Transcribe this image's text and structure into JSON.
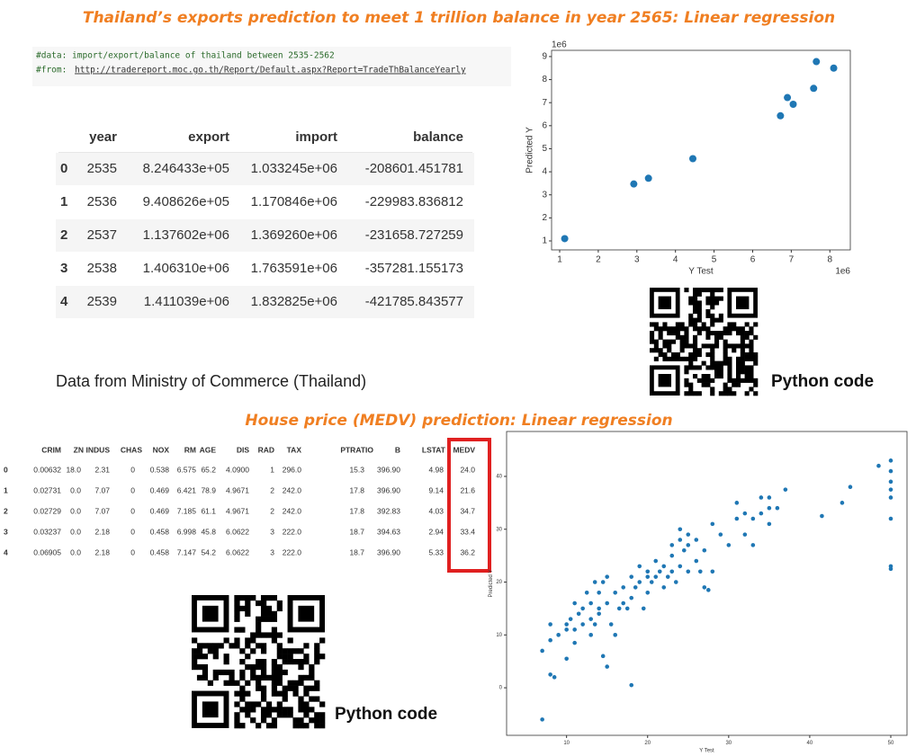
{
  "title1": "Thailand’s exports prediction to meet 1 trillion balance in year 2565:  Linear regression",
  "code": {
    "line1": "#data: import/export/balance of thailand between 2535-2562",
    "from": "#from:",
    "link": "http://tradereport.moc.go.th/Report/Default.aspx?Report=TradeThBalanceYearly"
  },
  "table1": {
    "columns": [
      "year",
      "export",
      "import",
      "balance"
    ],
    "rows": [
      [
        "0",
        "2535",
        "8.246433e+05",
        "1.033245e+06",
        "-208601.451781"
      ],
      [
        "1",
        "2536",
        "9.408626e+05",
        "1.170846e+06",
        "-229983.836812"
      ],
      [
        "2",
        "2537",
        "1.137602e+06",
        "1.369260e+06",
        "-231658.727259"
      ],
      [
        "3",
        "2538",
        "1.406310e+06",
        "1.763591e+06",
        "-357281.155173"
      ],
      [
        "4",
        "2539",
        "1.411039e+06",
        "1.832825e+06",
        "-421785.843577"
      ]
    ]
  },
  "caption": "Data from Ministry of Commerce (Thailand)",
  "qr_label1": "Python code",
  "title2": "House price (MEDV) prediction: Linear regression",
  "table2": {
    "columns": [
      "CRIM",
      "ZN",
      "INDUS",
      "CHAS",
      "NOX",
      "RM",
      "AGE",
      "DIS",
      "RAD",
      "TAX",
      "PTRATIO",
      "B",
      "LSTAT",
      "MEDV"
    ],
    "rows": [
      [
        "0",
        "0.00632",
        "18.0",
        "2.31",
        "0",
        "0.538",
        "6.575",
        "65.2",
        "4.0900",
        "1",
        "296.0",
        "15.3",
        "396.90",
        "4.98",
        "24.0"
      ],
      [
        "1",
        "0.02731",
        "0.0",
        "7.07",
        "0",
        "0.469",
        "6.421",
        "78.9",
        "4.9671",
        "2",
        "242.0",
        "17.8",
        "396.90",
        "9.14",
        "21.6"
      ],
      [
        "2",
        "0.02729",
        "0.0",
        "7.07",
        "0",
        "0.469",
        "7.185",
        "61.1",
        "4.9671",
        "2",
        "242.0",
        "17.8",
        "392.83",
        "4.03",
        "34.7"
      ],
      [
        "3",
        "0.03237",
        "0.0",
        "2.18",
        "0",
        "0.458",
        "6.998",
        "45.8",
        "6.0622",
        "3",
        "222.0",
        "18.7",
        "394.63",
        "2.94",
        "33.4"
      ],
      [
        "4",
        "0.06905",
        "0.0",
        "2.18",
        "0",
        "0.458",
        "7.147",
        "54.2",
        "6.0622",
        "3",
        "222.0",
        "18.7",
        "396.90",
        "5.33",
        "36.2"
      ]
    ]
  },
  "qr_label2": "Python code",
  "chart_data": [
    {
      "type": "scatter",
      "xlabel": "Y Test",
      "ylabel": "Predicted Y",
      "xoffset": "1e6",
      "yoffset": "1e6",
      "color": "#1f77b4",
      "x": [
        1.13,
        2.92,
        3.3,
        4.45,
        6.72,
        6.9,
        7.05,
        7.58,
        7.65,
        8.1
      ],
      "values": [
        1.1,
        3.47,
        3.72,
        4.57,
        6.43,
        7.22,
        6.93,
        7.62,
        8.78,
        8.5
      ],
      "xlim": [
        0.79,
        8.53
      ],
      "ylim": [
        0.61,
        9.27
      ],
      "xticks": [
        1,
        2,
        3,
        4,
        5,
        6,
        7,
        8
      ],
      "yticks": [
        1,
        2,
        3,
        4,
        5,
        6,
        7,
        8,
        9
      ]
    },
    {
      "type": "scatter",
      "xlabel": "Y Test",
      "ylabel": "Predicted Y",
      "color": "#1f77b4",
      "x": [
        7,
        7,
        8,
        8.5,
        8,
        9,
        8,
        10,
        10,
        10.5,
        10,
        11,
        11,
        11,
        11.5,
        12,
        12,
        12.5,
        13,
        13,
        13,
        13.5,
        13.5,
        14,
        14,
        14,
        14.5,
        14.5,
        15,
        15,
        15,
        15.5,
        16,
        16,
        16.5,
        17,
        17,
        17.5,
        18,
        18,
        18,
        18.5,
        19,
        19,
        19.5,
        20,
        20,
        20,
        20.5,
        21,
        21,
        21.5,
        22,
        22,
        22.5,
        23,
        23,
        23,
        23.5,
        24,
        24,
        24,
        24.5,
        25,
        25,
        25,
        26,
        26,
        26.5,
        27,
        27,
        27.5,
        28,
        28,
        29,
        30,
        31,
        31,
        32,
        32,
        33,
        33,
        34,
        34,
        35,
        35,
        35,
        36,
        37,
        41.5,
        44,
        45,
        48.5,
        50,
        50,
        50,
        50,
        50,
        50,
        50,
        50
      ],
      "values": [
        -6,
        7,
        2.5,
        2,
        9,
        10,
        12,
        11,
        12,
        13,
        5.5,
        8.5,
        11,
        16,
        14,
        12,
        15,
        18,
        13,
        16,
        10,
        12,
        20,
        14,
        15,
        18,
        6,
        20,
        4,
        16,
        21,
        12,
        18,
        10,
        15,
        16,
        19,
        15,
        17,
        21,
        0.5,
        19,
        20,
        23,
        15,
        18,
        21,
        22,
        20,
        21,
        24,
        22,
        19,
        23,
        21,
        22,
        25,
        27,
        20,
        23,
        28,
        30,
        26,
        22,
        27,
        29,
        28,
        24,
        22,
        26,
        19,
        18.5,
        31,
        22,
        29,
        27,
        32,
        35,
        33,
        29,
        32,
        27,
        36,
        33,
        31,
        34,
        36,
        34,
        37.5,
        32.5,
        35,
        38,
        42,
        43,
        41,
        39,
        37.5,
        36,
        32,
        23,
        22.5
      ],
      "xlim": [
        2.6,
        52
      ],
      "ylim": [
        -9,
        48.5
      ],
      "xticks": [
        10,
        20,
        30,
        40,
        50
      ],
      "yticks": [
        0,
        10,
        20,
        30,
        40
      ]
    }
  ]
}
